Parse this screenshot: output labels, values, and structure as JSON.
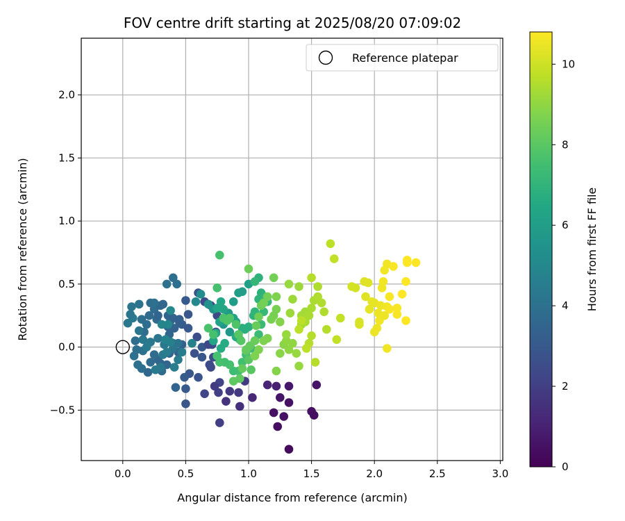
{
  "chart_data": {
    "type": "scatter",
    "title": "FOV centre drift starting at 2025/08/20 07:09:02",
    "xlabel": "Angular distance from reference (arcmin)",
    "ylabel": "Rotation from reference (arcmin)",
    "xlim": [
      -0.33,
      3.02
    ],
    "ylim": [
      -0.9,
      2.45
    ],
    "xticks": [
      0.0,
      0.5,
      1.0,
      1.5,
      2.0,
      2.5,
      3.0
    ],
    "xtick_labels": [
      "0.0",
      "0.5",
      "1.0",
      "1.5",
      "2.0",
      "2.5",
      "3.0"
    ],
    "yticks": [
      -0.5,
      0.0,
      0.5,
      1.0,
      1.5,
      2.0
    ],
    "ytick_labels": [
      "−0.5",
      "0.0",
      "0.5",
      "1.0",
      "1.5",
      "2.0"
    ],
    "grid": true,
    "legend": {
      "location": "upper right",
      "label": "Reference platepar"
    },
    "reference_point": {
      "x": 0.0,
      "y": 0.0
    },
    "colorbar": {
      "label": "Hours from first FF file",
      "colormap": "viridis",
      "range": [
        0,
        10.8
      ],
      "ticks": [
        0,
        2,
        4,
        6,
        8,
        10
      ],
      "tick_labels": [
        "0",
        "2",
        "4",
        "6",
        "8",
        "10"
      ]
    },
    "points_xyc": [
      [
        1.32,
        -0.81,
        0.3
      ],
      [
        1.23,
        -0.63,
        0.4
      ],
      [
        1.2,
        -0.52,
        0.5
      ],
      [
        1.28,
        -0.55,
        0.5
      ],
      [
        1.32,
        -0.44,
        0.5
      ],
      [
        1.25,
        -0.4,
        0.6
      ],
      [
        1.5,
        -0.51,
        0.5
      ],
      [
        1.52,
        -0.54,
        0.4
      ],
      [
        1.54,
        -0.3,
        0.6
      ],
      [
        1.32,
        -0.31,
        0.7
      ],
      [
        1.15,
        -0.3,
        1.1
      ],
      [
        1.22,
        -0.31,
        1.0
      ],
      [
        1.03,
        -0.4,
        1.2
      ],
      [
        0.93,
        -0.47,
        1.5
      ],
      [
        0.92,
        -0.36,
        1.8
      ],
      [
        0.97,
        -0.27,
        1.9
      ],
      [
        0.77,
        -0.6,
        2.0
      ],
      [
        0.82,
        -0.43,
        1.6
      ],
      [
        0.85,
        -0.35,
        1.8
      ],
      [
        0.76,
        -0.36,
        2.0
      ],
      [
        0.77,
        -0.28,
        2.2
      ],
      [
        0.73,
        -0.31,
        1.9
      ],
      [
        0.65,
        -0.37,
        2.2
      ],
      [
        0.7,
        -0.16,
        2.4
      ],
      [
        0.69,
        -0.14,
        2.5
      ],
      [
        0.6,
        -0.24,
        2.8
      ],
      [
        0.5,
        -0.45,
        2.9
      ],
      [
        0.5,
        -0.33,
        3.0
      ],
      [
        0.53,
        -0.21,
        2.9
      ],
      [
        0.49,
        -0.24,
        3.1
      ],
      [
        0.42,
        -0.32,
        3.5
      ],
      [
        0.57,
        -0.05,
        2.7
      ],
      [
        0.63,
        -0.08,
        2.9
      ],
      [
        0.59,
        0.08,
        2.6
      ],
      [
        0.63,
        0.0,
        3.0
      ],
      [
        0.68,
        0.02,
        2.4
      ],
      [
        0.71,
        0.02,
        2.5
      ],
      [
        0.72,
        -0.08,
        2.6
      ],
      [
        0.74,
        0.12,
        2.3
      ],
      [
        0.75,
        0.25,
        2.4
      ],
      [
        0.7,
        0.33,
        2.2
      ],
      [
        0.65,
        0.36,
        2.5
      ],
      [
        0.6,
        0.43,
        2.7
      ],
      [
        0.52,
        0.26,
        2.9
      ],
      [
        0.5,
        0.37,
        3.0
      ],
      [
        0.47,
        0.18,
        3.2
      ],
      [
        0.52,
        0.15,
        3.0
      ],
      [
        0.45,
        0.22,
        3.2
      ],
      [
        0.47,
        0.02,
        3.3
      ],
      [
        0.44,
        -0.04,
        3.4
      ],
      [
        0.4,
        0.03,
        3.4
      ],
      [
        0.37,
        0.1,
        3.5
      ],
      [
        0.37,
        -0.05,
        3.5
      ],
      [
        0.35,
        -0.14,
        3.6
      ],
      [
        0.31,
        -0.19,
        3.7
      ],
      [
        0.3,
        -0.13,
        3.5
      ],
      [
        0.28,
        -0.1,
        3.6
      ],
      [
        0.25,
        -0.06,
        3.8
      ],
      [
        0.22,
        -0.12,
        3.7
      ],
      [
        0.2,
        -0.2,
        3.6
      ],
      [
        0.15,
        -0.17,
        3.9
      ],
      [
        0.12,
        -0.14,
        4.0
      ],
      [
        0.11,
        -0.02,
        3.9
      ],
      [
        0.1,
        0.05,
        3.8
      ],
      [
        0.09,
        -0.07,
        4.0
      ],
      [
        0.16,
        -0.03,
        4.0
      ],
      [
        0.17,
        0.12,
        3.8
      ],
      [
        0.15,
        0.22,
        3.9
      ],
      [
        0.19,
        0.18,
        3.9
      ],
      [
        0.21,
        0.25,
        3.7
      ],
      [
        0.22,
        0.35,
        3.8
      ],
      [
        0.25,
        0.3,
        3.8
      ],
      [
        0.27,
        0.22,
        3.7
      ],
      [
        0.3,
        0.33,
        3.6
      ],
      [
        0.32,
        0.34,
        3.6
      ],
      [
        0.28,
        0.25,
        3.5
      ],
      [
        0.36,
        0.25,
        3.5
      ],
      [
        0.38,
        0.21,
        3.6
      ],
      [
        0.36,
        0.16,
        3.5
      ],
      [
        0.4,
        0.23,
        3.4
      ],
      [
        0.41,
        0.15,
        3.4
      ],
      [
        0.45,
        0.2,
        3.3
      ],
      [
        0.43,
        0.5,
        3.9
      ],
      [
        0.4,
        0.55,
        3.9
      ],
      [
        0.35,
        0.5,
        4.0
      ],
      [
        0.44,
        0.03,
        4.1
      ],
      [
        0.4,
        -0.01,
        4.2
      ],
      [
        0.33,
        0.02,
        4.3
      ],
      [
        0.28,
        0.07,
        4.2
      ],
      [
        0.22,
        0.04,
        4.3
      ],
      [
        0.19,
        0.0,
        4.4
      ],
      [
        0.16,
        0.06,
        4.3
      ],
      [
        0.13,
        0.13,
        4.2
      ],
      [
        0.08,
        0.23,
        4.4
      ],
      [
        0.06,
        0.26,
        4.2
      ],
      [
        0.04,
        0.19,
        4.3
      ],
      [
        0.07,
        0.32,
        4.2
      ],
      [
        0.13,
        0.34,
        4.1
      ],
      [
        0.25,
        0.35,
        4.0
      ],
      [
        0.3,
        -0.16,
        4.3
      ],
      [
        0.26,
        -0.18,
        4.4
      ],
      [
        0.32,
        -0.06,
        4.4
      ],
      [
        0.35,
        -0.04,
        4.6
      ],
      [
        0.38,
        0.04,
        4.7
      ],
      [
        0.41,
        -0.16,
        4.6
      ],
      [
        0.44,
        -0.1,
        4.5
      ],
      [
        0.47,
        -0.04,
        4.5
      ],
      [
        0.55,
        0.03,
        4.7
      ],
      [
        0.34,
        0.06,
        4.8
      ],
      [
        0.31,
        0.18,
        4.9
      ],
      [
        0.36,
        0.18,
        4.9
      ],
      [
        0.38,
        0.29,
        5.0
      ],
      [
        0.58,
        0.36,
        5.0
      ],
      [
        0.62,
        0.42,
        5.2
      ],
      [
        0.68,
        0.34,
        5.4
      ],
      [
        0.72,
        0.3,
        5.6
      ],
      [
        0.8,
        0.18,
        5.6
      ],
      [
        0.85,
        0.12,
        5.7
      ],
      [
        0.84,
        0.27,
        5.8
      ],
      [
        0.88,
        0.36,
        5.9
      ],
      [
        0.92,
        0.43,
        6.0
      ],
      [
        0.95,
        0.44,
        6.0
      ],
      [
        1.0,
        0.5,
        6.1
      ],
      [
        0.88,
        0.23,
        6.2
      ],
      [
        0.9,
        0.2,
        6.3
      ],
      [
        0.77,
        0.2,
        6.2
      ],
      [
        0.8,
        0.3,
        6.3
      ],
      [
        0.78,
        0.36,
        6.4
      ],
      [
        0.75,
        0.31,
        6.4
      ],
      [
        0.74,
        0.11,
        6.5
      ],
      [
        0.72,
        0.05,
        6.4
      ],
      [
        0.78,
        -0.01,
        6.6
      ],
      [
        0.81,
        0.03,
        6.6
      ],
      [
        0.9,
        0.08,
        6.6
      ],
      [
        0.93,
        0.06,
        6.7
      ],
      [
        0.95,
        0.15,
        6.7
      ],
      [
        0.97,
        0.14,
        6.8
      ],
      [
        1.0,
        0.16,
        6.8
      ],
      [
        1.04,
        0.25,
        6.9
      ],
      [
        1.05,
        0.28,
        7.0
      ],
      [
        1.08,
        0.38,
        7.0
      ],
      [
        1.1,
        0.43,
        6.9
      ],
      [
        1.08,
        0.55,
        6.9
      ],
      [
        1.05,
        0.52,
        7.1
      ],
      [
        1.13,
        0.4,
        7.1
      ],
      [
        1.15,
        0.36,
        7.2
      ],
      [
        1.12,
        0.28,
        7.2
      ],
      [
        1.1,
        0.18,
        7.3
      ],
      [
        1.08,
        0.1,
        7.3
      ],
      [
        1.05,
        0.05,
        7.3
      ],
      [
        1.02,
        -0.01,
        7.4
      ],
      [
        0.98,
        -0.06,
        7.4
      ],
      [
        0.95,
        -0.12,
        7.5
      ],
      [
        0.92,
        -0.19,
        7.5
      ],
      [
        0.88,
        -0.19,
        7.4
      ],
      [
        0.85,
        -0.14,
        7.6
      ],
      [
        0.81,
        -0.12,
        7.5
      ],
      [
        0.77,
        -0.12,
        7.6
      ],
      [
        0.75,
        -0.07,
        7.6
      ],
      [
        0.72,
        0.1,
        7.6
      ],
      [
        0.68,
        0.15,
        7.7
      ],
      [
        0.75,
        0.47,
        7.6
      ],
      [
        0.77,
        0.73,
        7.6
      ],
      [
        0.8,
        0.23,
        7.7
      ],
      [
        0.83,
        0.21,
        7.8
      ],
      [
        0.85,
        0.23,
        7.8
      ],
      [
        0.9,
        0.18,
        7.8
      ],
      [
        0.92,
        0.1,
        7.9
      ],
      [
        0.94,
        0.05,
        7.9
      ],
      [
        0.98,
        -0.03,
        8.0
      ],
      [
        1.0,
        -0.1,
        8.0
      ],
      [
        1.02,
        -0.18,
        8.0
      ],
      [
        0.93,
        -0.25,
        8.1
      ],
      [
        0.88,
        -0.27,
        8.1
      ],
      [
        0.95,
        -0.17,
        8.2
      ],
      [
        0.98,
        -0.02,
        8.2
      ],
      [
        1.01,
        0.01,
        8.2
      ],
      [
        1.05,
        0.05,
        8.3
      ],
      [
        1.06,
        0.17,
        8.3
      ],
      [
        1.08,
        0.24,
        8.4
      ],
      [
        1.1,
        0.33,
        8.4
      ],
      [
        1.12,
        0.35,
        8.5
      ],
      [
        1.15,
        0.4,
        8.5
      ],
      [
        1.2,
        0.25,
        8.6
      ],
      [
        1.22,
        0.3,
        8.6
      ],
      [
        1.18,
        0.22,
        8.6
      ],
      [
        1.15,
        0.07,
        8.7
      ],
      [
        1.12,
        0.05,
        8.7
      ],
      [
        1.08,
        -0.02,
        8.7
      ],
      [
        1.05,
        -0.07,
        8.7
      ],
      [
        1.0,
        0.62,
        8.4
      ],
      [
        1.2,
        0.55,
        8.5
      ],
      [
        1.22,
        0.4,
        8.7
      ],
      [
        1.25,
        0.2,
        8.8
      ],
      [
        1.22,
        -0.19,
        8.8
      ],
      [
        1.25,
        -0.05,
        8.9
      ],
      [
        1.28,
        0.02,
        8.9
      ],
      [
        1.3,
        0.05,
        9.0
      ],
      [
        1.32,
        -0.02,
        9.0
      ],
      [
        1.35,
        0.03,
        9.0
      ],
      [
        1.38,
        -0.05,
        9.1
      ],
      [
        1.4,
        -0.15,
        9.1
      ],
      [
        1.3,
        0.1,
        9.1
      ],
      [
        1.33,
        0.27,
        9.2
      ],
      [
        1.35,
        0.38,
        9.2
      ],
      [
        1.32,
        0.5,
        9.1
      ],
      [
        1.4,
        0.48,
        9.2
      ],
      [
        1.42,
        0.25,
        9.3
      ],
      [
        1.45,
        0.28,
        9.3
      ],
      [
        1.42,
        0.18,
        9.3
      ],
      [
        1.45,
        0.2,
        9.4
      ],
      [
        1.48,
        0.25,
        9.4
      ],
      [
        1.5,
        0.31,
        9.4
      ],
      [
        1.52,
        0.37,
        9.4
      ],
      [
        1.55,
        0.4,
        9.5
      ],
      [
        1.58,
        0.35,
        9.5
      ],
      [
        1.55,
        0.48,
        9.5
      ],
      [
        1.5,
        0.55,
        9.6
      ],
      [
        1.6,
        0.28,
        9.5
      ],
      [
        1.62,
        0.14,
        9.6
      ],
      [
        1.48,
        0.03,
        9.6
      ],
      [
        1.5,
        0.09,
        9.6
      ],
      [
        1.46,
        -0.01,
        9.7
      ],
      [
        1.53,
        -0.12,
        9.6
      ],
      [
        1.4,
        0.14,
        9.7
      ],
      [
        1.42,
        0.21,
        9.7
      ],
      [
        1.65,
        0.82,
        9.7
      ],
      [
        1.68,
        0.7,
        9.8
      ],
      [
        1.73,
        0.23,
        9.8
      ],
      [
        1.7,
        0.06,
        9.8
      ],
      [
        1.82,
        0.48,
        10.1
      ],
      [
        1.85,
        0.47,
        10.1
      ],
      [
        1.88,
        0.18,
        10.2
      ],
      [
        1.88,
        0.2,
        10.2
      ],
      [
        1.92,
        0.52,
        10.3
      ],
      [
        1.95,
        0.51,
        10.3
      ],
      [
        1.93,
        0.4,
        10.3
      ],
      [
        1.96,
        0.3,
        10.4
      ],
      [
        1.98,
        0.36,
        10.4
      ],
      [
        2.0,
        0.35,
        10.4
      ],
      [
        2.0,
        0.12,
        10.5
      ],
      [
        2.02,
        0.15,
        10.5
      ],
      [
        2.03,
        0.27,
        10.5
      ],
      [
        2.05,
        0.33,
        10.5
      ],
      [
        2.06,
        0.47,
        10.6
      ],
      [
        2.07,
        0.52,
        10.6
      ],
      [
        2.08,
        0.61,
        10.6
      ],
      [
        2.1,
        0.66,
        10.6
      ],
      [
        2.1,
        0.32,
        10.6
      ],
      [
        2.12,
        0.4,
        10.7
      ],
      [
        2.12,
        0.3,
        10.7
      ],
      [
        2.1,
        -0.01,
        10.6
      ],
      [
        2.15,
        0.64,
        10.7
      ],
      [
        2.18,
        0.31,
        10.7
      ],
      [
        2.18,
        0.26,
        10.7
      ],
      [
        2.22,
        0.42,
        10.8
      ],
      [
        2.25,
        0.52,
        10.8
      ],
      [
        2.25,
        0.21,
        10.8
      ],
      [
        2.26,
        0.67,
        10.8
      ],
      [
        2.26,
        0.69,
        10.8
      ],
      [
        2.33,
        0.67,
        10.8
      ],
      [
        2.04,
        0.21,
        10.6
      ],
      [
        2.08,
        0.25,
        10.5
      ]
    ]
  }
}
